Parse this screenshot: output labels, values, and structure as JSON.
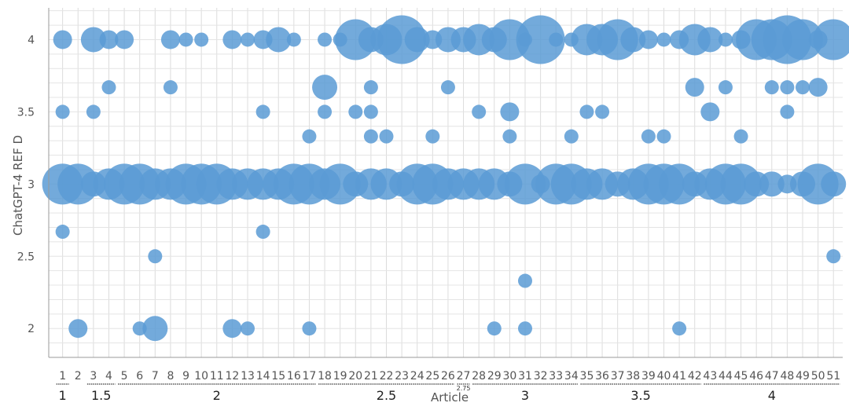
{
  "chart_data": {
    "type": "scatter",
    "variant": "bubble",
    "xlabel": "Article",
    "ylabel": "ChatGPT-4 REF D",
    "x_ticks": [
      "1",
      "2",
      "3",
      "4",
      "5",
      "6",
      "7",
      "8",
      "9",
      "10",
      "11",
      "12",
      "13",
      "14",
      "15",
      "16",
      "17",
      "18",
      "19",
      "20",
      "21",
      "22",
      "23",
      "24",
      "25",
      "26",
      "27",
      "28",
      "29",
      "30",
      "31",
      "32",
      "33",
      "34",
      "35",
      "36",
      "37",
      "38",
      "39",
      "40",
      "41",
      "42",
      "43",
      "44",
      "45",
      "46",
      "47",
      "48",
      "49",
      "50",
      "51"
    ],
    "y_ticks": [
      "2",
      "2.5",
      "3",
      "3.5",
      "4"
    ],
    "ylim": [
      1.8,
      4.22
    ],
    "xlim": [
      0.1,
      51.6
    ],
    "grid": true,
    "bubble_color": "#5b9bd5",
    "groups": [
      {
        "label": "1",
        "start": 1,
        "end": 1
      },
      {
        "label": "1.5",
        "start": 3,
        "end": 4
      },
      {
        "label": "2",
        "start": 5,
        "end": 17
      },
      {
        "label": "2.5",
        "start": 18,
        "end": 26
      },
      {
        "label": "2.75",
        "start": 27,
        "end": 27
      },
      {
        "label": "3",
        "start": 28,
        "end": 34
      },
      {
        "label": "3.5",
        "start": 35,
        "end": 42
      },
      {
        "label": "4",
        "start": 43,
        "end": 51
      }
    ],
    "points": [
      {
        "x": 1,
        "y": 4,
        "size": 2
      },
      {
        "x": 1,
        "y": 3.5,
        "size": 1
      },
      {
        "x": 1,
        "y": 3,
        "size": 5
      },
      {
        "x": 1,
        "y": 2.67,
        "size": 1
      },
      {
        "x": 2,
        "y": 3,
        "size": 5
      },
      {
        "x": 2,
        "y": 2,
        "size": 2
      },
      {
        "x": 3,
        "y": 4,
        "size": 3
      },
      {
        "x": 3,
        "y": 3.5,
        "size": 1
      },
      {
        "x": 3,
        "y": 3,
        "size": 3
      },
      {
        "x": 4,
        "y": 4,
        "size": 2
      },
      {
        "x": 4,
        "y": 3.67,
        "size": 1
      },
      {
        "x": 4,
        "y": 3,
        "size": 4
      },
      {
        "x": 5,
        "y": 4,
        "size": 2
      },
      {
        "x": 5,
        "y": 3,
        "size": 5
      },
      {
        "x": 6,
        "y": 3,
        "size": 5
      },
      {
        "x": 6,
        "y": 2,
        "size": 1
      },
      {
        "x": 7,
        "y": 3,
        "size": 4
      },
      {
        "x": 7,
        "y": 2.5,
        "size": 1
      },
      {
        "x": 7,
        "y": 2,
        "size": 3
      },
      {
        "x": 8,
        "y": 4,
        "size": 2
      },
      {
        "x": 8,
        "y": 3.67,
        "size": 1
      },
      {
        "x": 8,
        "y": 3,
        "size": 4
      },
      {
        "x": 9,
        "y": 4,
        "size": 1
      },
      {
        "x": 9,
        "y": 3,
        "size": 5
      },
      {
        "x": 10,
        "y": 4,
        "size": 1
      },
      {
        "x": 10,
        "y": 3,
        "size": 5
      },
      {
        "x": 11,
        "y": 3,
        "size": 5
      },
      {
        "x": 12,
        "y": 4,
        "size": 2
      },
      {
        "x": 12,
        "y": 3,
        "size": 4
      },
      {
        "x": 12,
        "y": 2,
        "size": 2
      },
      {
        "x": 13,
        "y": 4,
        "size": 1
      },
      {
        "x": 13,
        "y": 3,
        "size": 4
      },
      {
        "x": 13,
        "y": 2,
        "size": 1
      },
      {
        "x": 14,
        "y": 4,
        "size": 2
      },
      {
        "x": 14,
        "y": 3.5,
        "size": 1
      },
      {
        "x": 14,
        "y": 3,
        "size": 4
      },
      {
        "x": 14,
        "y": 2.67,
        "size": 1
      },
      {
        "x": 15,
        "y": 4,
        "size": 3
      },
      {
        "x": 15,
        "y": 3,
        "size": 4
      },
      {
        "x": 16,
        "y": 4,
        "size": 1
      },
      {
        "x": 16,
        "y": 3,
        "size": 5
      },
      {
        "x": 17,
        "y": 3.33,
        "size": 1
      },
      {
        "x": 17,
        "y": 3,
        "size": 5
      },
      {
        "x": 17,
        "y": 2,
        "size": 1
      },
      {
        "x": 18,
        "y": 4,
        "size": 1
      },
      {
        "x": 18,
        "y": 3.67,
        "size": 3
      },
      {
        "x": 18,
        "y": 3.5,
        "size": 1
      },
      {
        "x": 18,
        "y": 3,
        "size": 4
      },
      {
        "x": 19,
        "y": 4,
        "size": 1
      },
      {
        "x": 19,
        "y": 3,
        "size": 5
      },
      {
        "x": 20,
        "y": 4,
        "size": 5
      },
      {
        "x": 20,
        "y": 3.5,
        "size": 1
      },
      {
        "x": 20,
        "y": 3,
        "size": 3
      },
      {
        "x": 21,
        "y": 4,
        "size": 3
      },
      {
        "x": 21,
        "y": 3.67,
        "size": 1
      },
      {
        "x": 21,
        "y": 3.5,
        "size": 1
      },
      {
        "x": 21,
        "y": 3.33,
        "size": 1
      },
      {
        "x": 21,
        "y": 3,
        "size": 4
      },
      {
        "x": 22,
        "y": 4,
        "size": 4
      },
      {
        "x": 22,
        "y": 3.33,
        "size": 1
      },
      {
        "x": 22,
        "y": 3,
        "size": 4
      },
      {
        "x": 23,
        "y": 4,
        "size": 6
      },
      {
        "x": 23,
        "y": 3,
        "size": 3
      },
      {
        "x": 24,
        "y": 4,
        "size": 3
      },
      {
        "x": 24,
        "y": 3,
        "size": 5
      },
      {
        "x": 25,
        "y": 4,
        "size": 2
      },
      {
        "x": 25,
        "y": 3.33,
        "size": 1
      },
      {
        "x": 25,
        "y": 3,
        "size": 5
      },
      {
        "x": 26,
        "y": 4,
        "size": 3
      },
      {
        "x": 26,
        "y": 3.67,
        "size": 1
      },
      {
        "x": 26,
        "y": 3,
        "size": 4
      },
      {
        "x": 27,
        "y": 4,
        "size": 3
      },
      {
        "x": 27,
        "y": 3,
        "size": 4
      },
      {
        "x": 28,
        "y": 4,
        "size": 4
      },
      {
        "x": 28,
        "y": 3.5,
        "size": 1
      },
      {
        "x": 28,
        "y": 3,
        "size": 4
      },
      {
        "x": 29,
        "y": 4,
        "size": 3
      },
      {
        "x": 29,
        "y": 3,
        "size": 4
      },
      {
        "x": 29,
        "y": 2,
        "size": 1
      },
      {
        "x": 30,
        "y": 4,
        "size": 5
      },
      {
        "x": 30,
        "y": 3.5,
        "size": 2
      },
      {
        "x": 30,
        "y": 3.33,
        "size": 1
      },
      {
        "x": 30,
        "y": 3,
        "size": 3
      },
      {
        "x": 31,
        "y": 4,
        "size": 1
      },
      {
        "x": 31,
        "y": 3,
        "size": 5
      },
      {
        "x": 31,
        "y": 2.33,
        "size": 1
      },
      {
        "x": 31,
        "y": 2,
        "size": 1
      },
      {
        "x": 32,
        "y": 4,
        "size": 6
      },
      {
        "x": 32,
        "y": 3,
        "size": 2
      },
      {
        "x": 33,
        "y": 4,
        "size": 1
      },
      {
        "x": 33,
        "y": 3,
        "size": 5
      },
      {
        "x": 34,
        "y": 4,
        "size": 1
      },
      {
        "x": 34,
        "y": 3.33,
        "size": 1
      },
      {
        "x": 34,
        "y": 3,
        "size": 5
      },
      {
        "x": 35,
        "y": 4,
        "size": 4
      },
      {
        "x": 35,
        "y": 3.5,
        "size": 1
      },
      {
        "x": 35,
        "y": 3,
        "size": 4
      },
      {
        "x": 36,
        "y": 4,
        "size": 4
      },
      {
        "x": 36,
        "y": 3.5,
        "size": 1
      },
      {
        "x": 36,
        "y": 3,
        "size": 4
      },
      {
        "x": 37,
        "y": 4,
        "size": 5
      },
      {
        "x": 37,
        "y": 3,
        "size": 3
      },
      {
        "x": 38,
        "y": 4,
        "size": 3
      },
      {
        "x": 38,
        "y": 3,
        "size": 4
      },
      {
        "x": 39,
        "y": 4,
        "size": 2
      },
      {
        "x": 39,
        "y": 3.33,
        "size": 1
      },
      {
        "x": 39,
        "y": 3,
        "size": 5
      },
      {
        "x": 40,
        "y": 4,
        "size": 1
      },
      {
        "x": 40,
        "y": 3.33,
        "size": 1
      },
      {
        "x": 40,
        "y": 3,
        "size": 5
      },
      {
        "x": 41,
        "y": 4,
        "size": 2
      },
      {
        "x": 41,
        "y": 3,
        "size": 5
      },
      {
        "x": 41,
        "y": 2,
        "size": 1
      },
      {
        "x": 42,
        "y": 4,
        "size": 4
      },
      {
        "x": 42,
        "y": 3.67,
        "size": 2
      },
      {
        "x": 42,
        "y": 3,
        "size": 3
      },
      {
        "x": 43,
        "y": 4,
        "size": 3
      },
      {
        "x": 43,
        "y": 3.5,
        "size": 2
      },
      {
        "x": 43,
        "y": 3,
        "size": 4
      },
      {
        "x": 44,
        "y": 4,
        "size": 1
      },
      {
        "x": 44,
        "y": 3.67,
        "size": 1
      },
      {
        "x": 44,
        "y": 3,
        "size": 5
      },
      {
        "x": 45,
        "y": 4,
        "size": 2
      },
      {
        "x": 45,
        "y": 3.33,
        "size": 1
      },
      {
        "x": 45,
        "y": 3,
        "size": 5
      },
      {
        "x": 46,
        "y": 4,
        "size": 5
      },
      {
        "x": 46,
        "y": 3,
        "size": 3
      },
      {
        "x": 47,
        "y": 4,
        "size": 5
      },
      {
        "x": 47,
        "y": 3.67,
        "size": 1
      },
      {
        "x": 47,
        "y": 3,
        "size": 3
      },
      {
        "x": 48,
        "y": 4,
        "size": 6
      },
      {
        "x": 48,
        "y": 3.67,
        "size": 1
      },
      {
        "x": 48,
        "y": 3.5,
        "size": 1
      },
      {
        "x": 48,
        "y": 3,
        "size": 2
      },
      {
        "x": 49,
        "y": 4,
        "size": 5
      },
      {
        "x": 49,
        "y": 3.67,
        "size": 1
      },
      {
        "x": 49,
        "y": 3,
        "size": 3
      },
      {
        "x": 50,
        "y": 4,
        "size": 2
      },
      {
        "x": 50,
        "y": 3.67,
        "size": 2
      },
      {
        "x": 50,
        "y": 3,
        "size": 5
      },
      {
        "x": 51,
        "y": 4,
        "size": 5
      },
      {
        "x": 51,
        "y": 3,
        "size": 3
      },
      {
        "x": 51,
        "y": 2.5,
        "size": 1
      }
    ]
  }
}
